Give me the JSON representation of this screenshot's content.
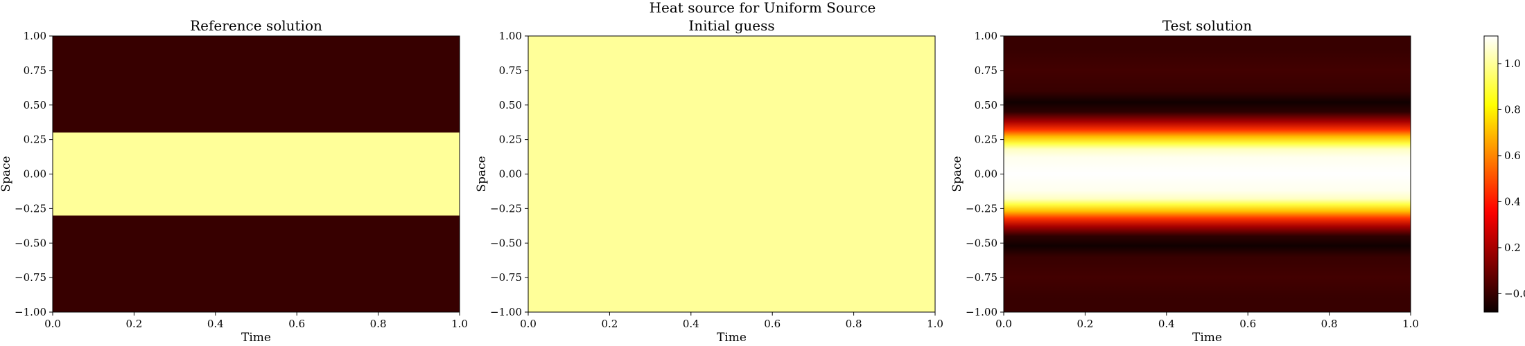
{
  "figure": {
    "suptitle": "Heat source for Uniform Source"
  },
  "colorbar": {
    "ticks": [
      -0.0,
      0.2,
      0.4,
      0.6,
      0.8,
      1.0
    ],
    "tick_labels": [
      "−0.0",
      "0.2",
      "0.4",
      "0.6",
      "0.8",
      "1.0"
    ],
    "vmin": -0.08,
    "vmax": 1.12,
    "colormap": "hot"
  },
  "chart_data": [
    {
      "type": "heatmap",
      "title": "Reference solution",
      "xlabel": "Time",
      "ylabel": "Space",
      "xlim": [
        0.0,
        1.0
      ],
      "ylim": [
        -1.0,
        1.0
      ],
      "x_ticks": [
        "0.0",
        "0.2",
        "0.4",
        "0.6",
        "0.8",
        "1.0"
      ],
      "y_ticks": [
        "1.00",
        "0.75",
        "0.50",
        "0.25",
        "0.00",
        "−0.25",
        "−0.50",
        "−0.75",
        "−1.00"
      ],
      "profile": {
        "space": [
          -1.0,
          -0.3,
          -0.3,
          0.3,
          0.3,
          1.0
        ],
        "value": [
          0.0,
          0.0,
          1.0,
          1.0,
          0.0,
          0.0
        ]
      },
      "uniform_in_time": true
    },
    {
      "type": "heatmap",
      "title": "Initial guess",
      "xlabel": "Time",
      "ylabel": "Space",
      "xlim": [
        0.0,
        1.0
      ],
      "ylim": [
        -1.0,
        1.0
      ],
      "x_ticks": [
        "0.0",
        "0.2",
        "0.4",
        "0.6",
        "0.8",
        "1.0"
      ],
      "y_ticks": [
        "1.00",
        "0.75",
        "0.50",
        "0.25",
        "0.00",
        "−0.25",
        "−0.50",
        "−0.75",
        "−1.00"
      ],
      "profile": {
        "space": [
          -1.0,
          1.0
        ],
        "value": [
          1.0,
          1.0
        ]
      },
      "uniform_in_time": true
    },
    {
      "type": "heatmap",
      "title": "Test solution",
      "xlabel": "Time",
      "ylabel": "Space",
      "xlim": [
        0.0,
        1.0
      ],
      "ylim": [
        -1.0,
        1.0
      ],
      "x_ticks": [
        "0.0",
        "0.2",
        "0.4",
        "0.6",
        "0.8",
        "1.0"
      ],
      "y_ticks": [
        "1.00",
        "0.75",
        "0.50",
        "0.25",
        "0.00",
        "−0.25",
        "−0.50",
        "−0.75",
        "−1.00"
      ],
      "profile": {
        "space": [
          -1.0,
          -0.9,
          -0.75,
          -0.6,
          -0.52,
          -0.45,
          -0.38,
          -0.32,
          -0.27,
          -0.22,
          -0.18,
          -0.12,
          0.0,
          0.12,
          0.18,
          0.22,
          0.27,
          0.32,
          0.38,
          0.45,
          0.52,
          0.6,
          0.75,
          0.9,
          1.0
        ],
        "value": [
          0.0,
          0.0,
          0.02,
          0.0,
          -0.07,
          -0.02,
          0.2,
          0.45,
          0.7,
          0.9,
          1.05,
          1.1,
          1.12,
          1.1,
          1.05,
          0.9,
          0.7,
          0.45,
          0.2,
          -0.02,
          -0.07,
          0.0,
          0.02,
          0.0,
          0.0
        ]
      },
      "uniform_in_time": true
    }
  ]
}
